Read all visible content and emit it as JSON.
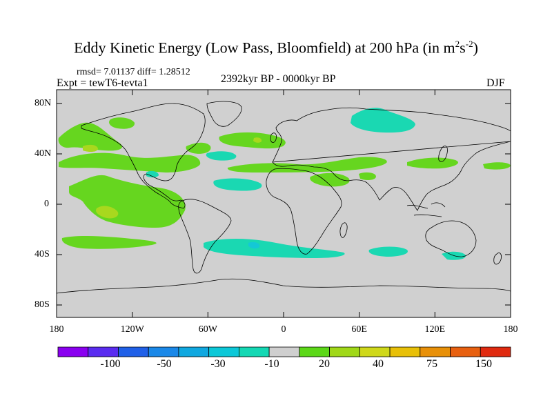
{
  "title": {
    "text": "Eddy Kinetic Energy (Low Pass, Bloomfield) at 200 hPa (in m",
    "sup1": "2",
    "mid": "s",
    "sup2": "-2",
    "close": ")"
  },
  "stats": "rmsd= 7.01137 diff= 1.28512",
  "experiment": "Expt = tewT6-tevta1",
  "period": "2392kyr BP - 0000kyr BP",
  "season": "DJF",
  "lat_labels": [
    "80N",
    "40N",
    "0",
    "40S",
    "80S"
  ],
  "lon_labels": [
    "180",
    "120W",
    "60W",
    "0",
    "60E",
    "120E",
    "180"
  ],
  "colorbar": {
    "labels": [
      "-100",
      "-50",
      "-30",
      "-10",
      "20",
      "40",
      "75",
      "150"
    ],
    "colors": [
      "#8a00f0",
      "#5a2cf0",
      "#2060e8",
      "#1a88e8",
      "#10a8e0",
      "#0cc8d8",
      "#14d8b4",
      "#cfcfcf",
      "#5cd818",
      "#a0d818",
      "#cfd81a",
      "#e8c008",
      "#e89008",
      "#e86010",
      "#e02a10"
    ]
  },
  "colors": {
    "land_sea_background": "#d0d0d0",
    "positive_anomaly": "#66d61f",
    "strong_positive_anomaly": "#a8d81e",
    "negative_anomaly": "#1ad8b2",
    "strong_negative_anomaly": "#14c8d6"
  },
  "map_data": {
    "field": "Eddy kinetic energy difference",
    "level_hPa": 200,
    "projection": "cylindrical equidistant",
    "lon_range": [
      -180,
      180
    ],
    "lat_range": [
      -90,
      90
    ]
  }
}
